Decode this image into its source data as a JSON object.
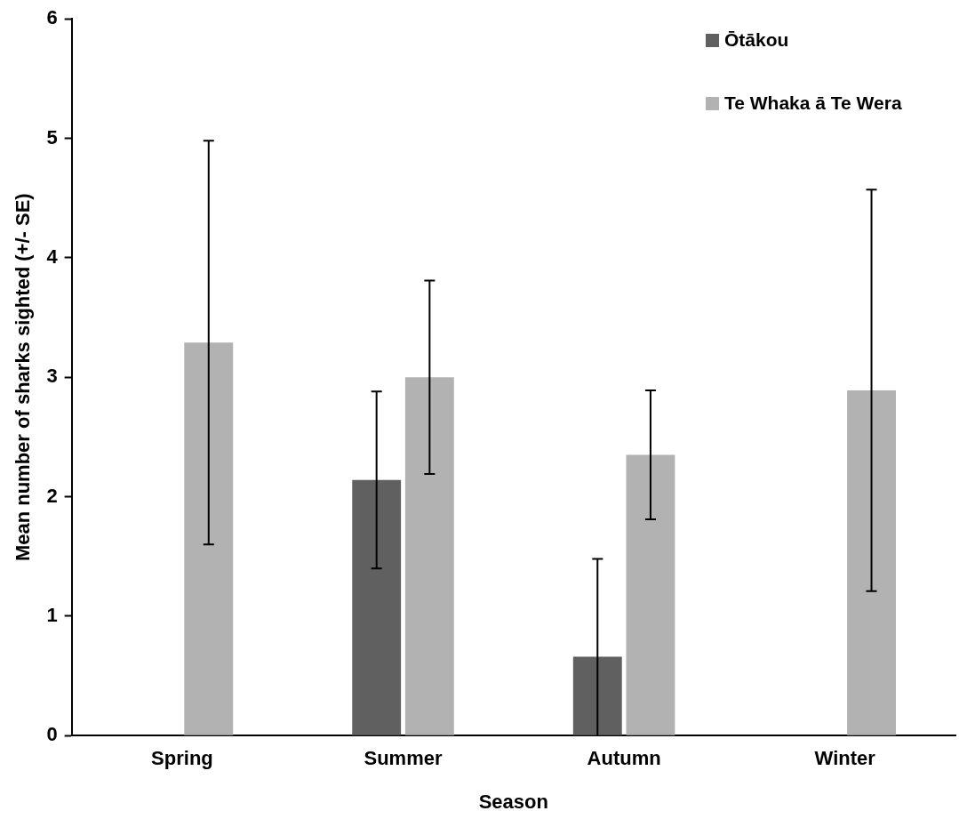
{
  "chart_data": {
    "type": "bar",
    "xlabel": "Season",
    "ylabel": "Mean number of sharks sighted (+/- SE)",
    "categories": [
      "Spring",
      "Summer",
      "Autumn",
      "Winter"
    ],
    "series": [
      {
        "name": "Ōtākou",
        "color": "#606060",
        "values": [
          0,
          2.14,
          0.66,
          0
        ],
        "errors": [
          null,
          0.74,
          [
            0,
            1.48
          ],
          null
        ]
      },
      {
        "name": "Te Whaka ā Te Wera",
        "color": "#b2b2b2",
        "values": [
          3.29,
          3.0,
          2.35,
          2.89
        ],
        "errors": [
          1.69,
          0.81,
          0.54,
          1.68
        ]
      }
    ],
    "ylim": [
      0,
      6
    ],
    "yticks": [
      0,
      1,
      2,
      3,
      4,
      5,
      6
    ],
    "grid": false,
    "legend": "top right"
  }
}
